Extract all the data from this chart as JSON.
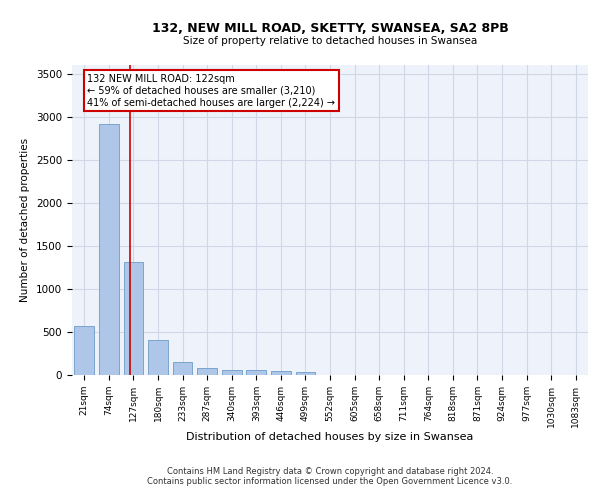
{
  "title1": "132, NEW MILL ROAD, SKETTY, SWANSEA, SA2 8PB",
  "title2": "Size of property relative to detached houses in Swansea",
  "xlabel": "Distribution of detached houses by size in Swansea",
  "ylabel": "Number of detached properties",
  "footer1": "Contains HM Land Registry data © Crown copyright and database right 2024.",
  "footer2": "Contains public sector information licensed under the Open Government Licence v3.0.",
  "bin_labels": [
    "21sqm",
    "74sqm",
    "127sqm",
    "180sqm",
    "233sqm",
    "287sqm",
    "340sqm",
    "393sqm",
    "446sqm",
    "499sqm",
    "552sqm",
    "605sqm",
    "658sqm",
    "711sqm",
    "764sqm",
    "818sqm",
    "871sqm",
    "924sqm",
    "977sqm",
    "1030sqm",
    "1083sqm"
  ],
  "bar_values": [
    570,
    2920,
    1310,
    410,
    155,
    80,
    58,
    55,
    48,
    40,
    0,
    0,
    0,
    0,
    0,
    0,
    0,
    0,
    0,
    0,
    0
  ],
  "bar_color": "#aec6e8",
  "bar_edge_color": "#5a8fc0",
  "grid_color": "#d0d8e8",
  "background_color": "#eef2fa",
  "vline_x": 1.85,
  "annotation_text": "132 NEW MILL ROAD: 122sqm\n← 59% of detached houses are smaller (3,210)\n41% of semi-detached houses are larger (2,224) →",
  "annotation_box_color": "#ffffff",
  "annotation_box_edge": "#cc0000",
  "vline_color": "#cc0000",
  "ylim": [
    0,
    3600
  ],
  "yticks": [
    0,
    500,
    1000,
    1500,
    2000,
    2500,
    3000,
    3500
  ]
}
